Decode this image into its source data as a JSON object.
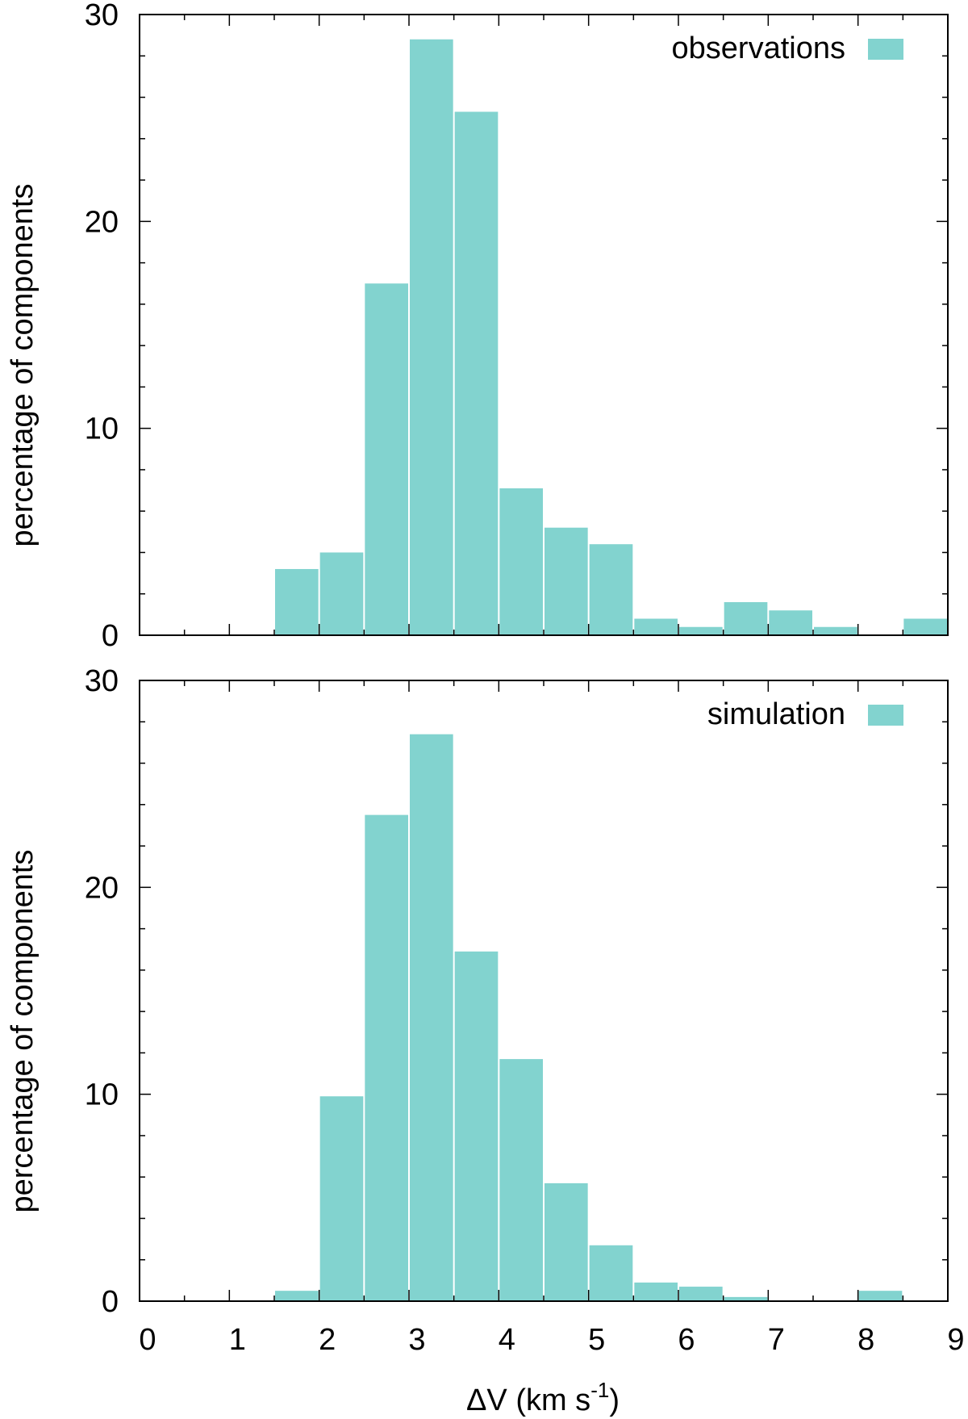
{
  "chart_data": [
    {
      "type": "bar",
      "panel": "top",
      "legend": "observations",
      "legend_position": "top-right",
      "ylabel": "percentage of components",
      "xlim": [
        0,
        9
      ],
      "ylim": [
        0,
        30
      ],
      "y_ticks": [
        "0",
        "10",
        "20",
        "30"
      ],
      "bin_width": 0.5,
      "bin_starts": [
        1.5,
        2.0,
        2.5,
        3.0,
        3.5,
        4.0,
        4.5,
        5.0,
        5.5,
        6.0,
        6.5,
        7.0,
        7.5,
        8.0,
        8.5
      ],
      "values": [
        3.2,
        4.0,
        17.0,
        28.8,
        25.3,
        7.1,
        5.2,
        4.4,
        0.8,
        0.4,
        1.6,
        1.2,
        0.4,
        0.0,
        0.8
      ]
    },
    {
      "type": "bar",
      "panel": "bottom",
      "legend": "simulation",
      "legend_position": "top-right",
      "ylabel": "percentage of components",
      "xlabel": "ΔV (km s",
      "xlabel_sup": "-1",
      "xlabel_end": ")",
      "xlim": [
        0,
        9
      ],
      "ylim": [
        0,
        30
      ],
      "x_ticks": [
        "0",
        "1",
        "2",
        "3",
        "4",
        "5",
        "6",
        "7",
        "8",
        "9"
      ],
      "y_ticks": [
        "0",
        "10",
        "20",
        "30"
      ],
      "bin_width": 0.5,
      "bin_starts": [
        1.5,
        2.0,
        2.5,
        3.0,
        3.5,
        4.0,
        4.5,
        5.0,
        5.5,
        6.0,
        6.5,
        7.0,
        7.5,
        8.0
      ],
      "values": [
        0.5,
        9.9,
        23.5,
        27.4,
        16.9,
        11.7,
        5.7,
        2.7,
        0.9,
        0.7,
        0.2,
        0.0,
        0.0,
        0.5
      ]
    }
  ],
  "colors": {
    "bar": "#82d3cf",
    "axis": "#000000"
  }
}
